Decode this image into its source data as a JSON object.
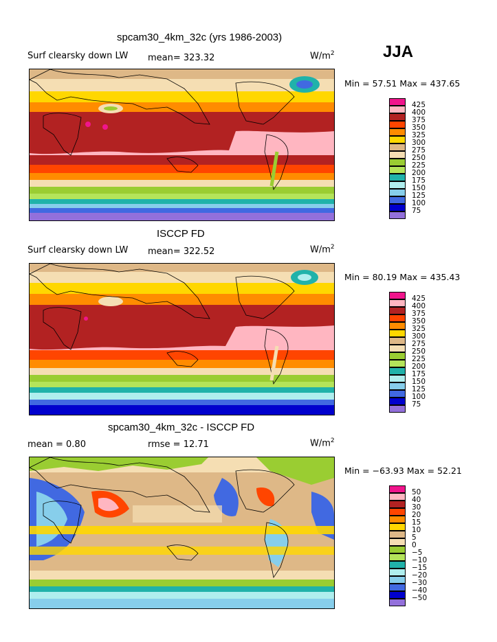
{
  "season": "JJA",
  "units_base": "W/m",
  "units_exp": "2",
  "panels": [
    {
      "title": "spcam30_4km_32c (yrs 1986-2003)",
      "label_left": "Surf clearsky down LW",
      "label_mid": "mean= 323.32",
      "minmax": "Min =  57.51 Max = 437.65"
    },
    {
      "title": "ISCCP FD",
      "label_left": "Surf clearsky down LW",
      "label_mid": "mean= 322.52",
      "minmax": "Min =  80.19 Max = 435.43"
    },
    {
      "title": "spcam30_4km_32c - ISCCP FD",
      "label_left": "mean =    0.80",
      "label_mid": "rmse =  12.71",
      "minmax": "Min = −63.93 Max =  52.21"
    }
  ],
  "legend_abs": {
    "levels": [
      "425",
      "400",
      "375",
      "350",
      "325",
      "300",
      "275",
      "250",
      "225",
      "200",
      "175",
      "150",
      "125",
      "100",
      "75"
    ],
    "colors": [
      "#f0158c",
      "#ffb6c1",
      "#b22222",
      "#ff4500",
      "#ff8c00",
      "#ffd700",
      "#deb887",
      "#f5deb3",
      "#9acd32",
      "#b4e45a",
      "#20b2aa",
      "#afeeee",
      "#87ceeb",
      "#4169e1",
      "#0000cd",
      "#9370db"
    ]
  },
  "legend_diff": {
    "levels": [
      "50",
      "40",
      "30",
      "20",
      "15",
      "10",
      "5",
      "0",
      "−5",
      "−10",
      "−15",
      "−20",
      "−30",
      "−40",
      "−50"
    ],
    "colors": [
      "#f0158c",
      "#ffb6c1",
      "#b22222",
      "#ff4500",
      "#ff8c00",
      "#ffd700",
      "#deb887",
      "#f5deb3",
      "#9acd32",
      "#b4e45a",
      "#20b2aa",
      "#afeeee",
      "#87ceeb",
      "#4169e1",
      "#0000cd",
      "#9370db"
    ]
  }
}
